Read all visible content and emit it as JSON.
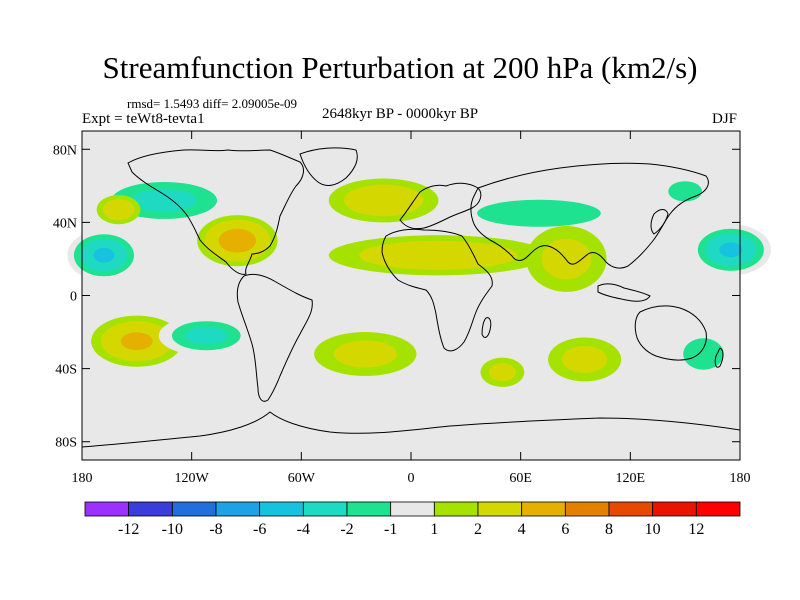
{
  "chart_data": {
    "type": "heatmap",
    "title": "Streamfunction Perturbation at 200 hPa (km2/s)",
    "subtitle": "rmsd= 1.5493 diff= 2.09005e-09",
    "left_label": "Expt = teWt8-tevta1",
    "center_label": "2648kyr BP - 0000kyr BP",
    "right_label": "DJF",
    "xlim": [
      -180,
      180
    ],
    "ylim": [
      -90,
      90
    ],
    "x_ticks": [
      {
        "value": -180,
        "label": "180"
      },
      {
        "value": -120,
        "label": "120W"
      },
      {
        "value": -60,
        "label": "60W"
      },
      {
        "value": 0,
        "label": "0"
      },
      {
        "value": 60,
        "label": "60E"
      },
      {
        "value": 120,
        "label": "120E"
      },
      {
        "value": 180,
        "label": "180"
      }
    ],
    "y_ticks": [
      {
        "value": 80,
        "label": "80N"
      },
      {
        "value": 40,
        "label": "40N"
      },
      {
        "value": 0,
        "label": "0"
      },
      {
        "value": -40,
        "label": "40S"
      },
      {
        "value": -80,
        "label": "80S"
      }
    ],
    "levels": [
      "-12",
      "-10",
      "-8",
      "-6",
      "-4",
      "-2",
      "-1",
      "1",
      "2",
      "4",
      "6",
      "8",
      "10",
      "12"
    ],
    "colors": [
      "#9b30ff",
      "#3a3dd9",
      "#1f6fdc",
      "#1ea2e6",
      "#17c1e0",
      "#1edac2",
      "#1fe291",
      "#e8e8e8",
      "#a6e200",
      "#d4d800",
      "#e6b000",
      "#e57f00",
      "#e64a00",
      "#e81400",
      "#ff0000"
    ],
    "features": [
      {
        "name": "n-pacific-trough",
        "lon": -135,
        "lat": 52,
        "rlon": 40,
        "rlat": 14,
        "value": -3
      },
      {
        "name": "n-pacific-west-blob",
        "lon": -160,
        "lat": 47,
        "rlon": 12,
        "rlat": 8,
        "value": 3
      },
      {
        "name": "e-pacific-low",
        "lon": -168,
        "lat": 22,
        "rlon": 20,
        "rlat": 14,
        "value": -5
      },
      {
        "name": "mexico-gulf-high",
        "lon": -95,
        "lat": 30,
        "rlon": 22,
        "rlat": 14,
        "value": 5
      },
      {
        "name": "s-pacific-high",
        "lon": -150,
        "lat": -25,
        "rlon": 25,
        "rlat": 14,
        "value": 4
      },
      {
        "name": "s-pacific-low",
        "lon": -112,
        "lat": -22,
        "rlon": 26,
        "rlat": 11,
        "value": -3
      },
      {
        "name": "n-atlantic-high",
        "lon": -15,
        "lat": 52,
        "rlon": 30,
        "rlat": 12,
        "value": 3
      },
      {
        "name": "eurasia-trough",
        "lon": 70,
        "lat": 45,
        "rlon": 55,
        "rlat": 12,
        "value": -2
      },
      {
        "name": "africa-arabia-high",
        "lon": 15,
        "lat": 22,
        "rlon": 60,
        "rlat": 11,
        "value": 3
      },
      {
        "name": "s-atlantic-high",
        "lon": -25,
        "lat": -32,
        "rlon": 28,
        "rlat": 12,
        "value": 2
      },
      {
        "name": "indian-ocean-high",
        "lon": 85,
        "lat": 20,
        "rlon": 22,
        "rlat": 18,
        "value": 2
      },
      {
        "name": "w-pacific-low",
        "lon": 175,
        "lat": 25,
        "rlon": 22,
        "rlat": 14,
        "value": -5
      },
      {
        "name": "kamchatka-low",
        "lon": 150,
        "lat": 57,
        "rlon": 15,
        "rlat": 9,
        "value": -2
      },
      {
        "name": "sw-indian-high",
        "lon": 50,
        "lat": -42,
        "rlon": 12,
        "rlat": 8,
        "value": 2
      },
      {
        "name": "s-indian-high",
        "lon": 95,
        "lat": -35,
        "rlon": 20,
        "rlat": 12,
        "value": 2
      },
      {
        "name": "australia-low",
        "lon": 160,
        "lat": -32,
        "rlon": 18,
        "rlat": 14,
        "value": -2
      }
    ]
  }
}
